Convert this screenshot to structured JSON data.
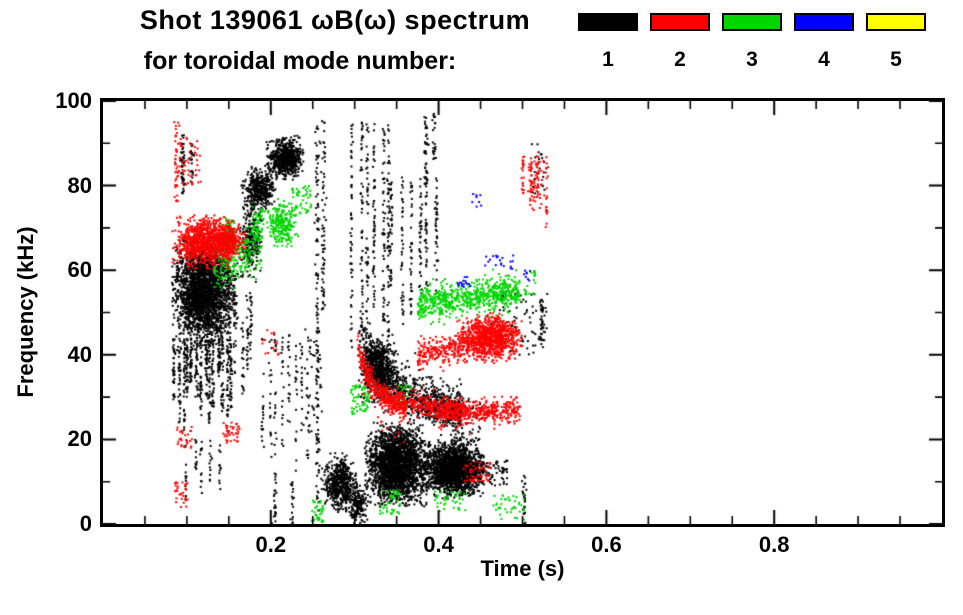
{
  "header": {
    "title_line1": "Shot 139061 ωB(ω) spectrum",
    "title_line2": "for toroidal mode number:"
  },
  "legend": {
    "modes": [
      {
        "label": "1",
        "color": "#000000"
      },
      {
        "label": "2",
        "color": "#ff0000"
      },
      {
        "label": "3",
        "color": "#00d500"
      },
      {
        "label": "4",
        "color": "#0000ff"
      },
      {
        "label": "5",
        "color": "#ffff00"
      }
    ]
  },
  "chart_data": {
    "type": "scatter",
    "title": "Shot 139061 ωB(ω) spectrum for toroidal mode number: 1 2 3 4 5",
    "xlabel": "Time (s)",
    "ylabel": "Frequency (kHz)",
    "legend_entries": [
      "1",
      "2",
      "3",
      "4",
      "5"
    ],
    "legend_position": "top-right",
    "grid": false,
    "xaxis": {
      "lim": [
        0,
        1
      ],
      "major": [
        0.2,
        0.4,
        0.6,
        0.8
      ],
      "labels": [
        "0.2",
        "0.4",
        "0.6",
        "0.8"
      ],
      "minor_step": 0.05
    },
    "yaxis": {
      "lim": [
        0,
        100
      ],
      "major": [
        0,
        20,
        40,
        60,
        80,
        100
      ],
      "labels": [
        "0",
        "20",
        "40",
        "60",
        "80",
        "100"
      ],
      "minor_step": 10
    },
    "mode_colors": {
      "1": "#000000",
      "2": "#ff0000",
      "3": "#00d500",
      "4": "#0000ff",
      "5": "#ffff00"
    },
    "clusters": [
      {
        "m": 1,
        "type": "blob",
        "t": [
          0.085,
          0.158
        ],
        "f": [
          43,
          67
        ],
        "n": 2600
      },
      {
        "m": 1,
        "type": "comb",
        "t": [
          0.086,
          0.152
        ],
        "f": [
          22,
          44
        ],
        "k": 14,
        "fj": 14,
        "n": 38
      },
      {
        "m": 1,
        "type": "comb",
        "t": [
          0.1,
          0.138
        ],
        "f": [
          4,
          20
        ],
        "k": 5,
        "fj": 10,
        "n": 12
      },
      {
        "m": 1,
        "type": "streak",
        "t": [
          0.095
        ],
        "f": [
          78,
          92
        ],
        "n": 46
      },
      {
        "m": 1,
        "type": "streak",
        "t": [
          0.106
        ],
        "f": [
          80,
          90
        ],
        "n": 24
      },
      {
        "m": 1,
        "type": "blob",
        "t": [
          0.163,
          0.19
        ],
        "f": [
          58,
          74
        ],
        "n": 240
      },
      {
        "m": 1,
        "type": "blob",
        "t": [
          0.168,
          0.205
        ],
        "f": [
          74,
          84
        ],
        "n": 420
      },
      {
        "m": 1,
        "type": "blob",
        "t": [
          0.198,
          0.238
        ],
        "f": [
          82,
          91
        ],
        "n": 680
      },
      {
        "m": 1,
        "type": "comb",
        "t": [
          0.152,
          0.178
        ],
        "f": [
          30,
          55
        ],
        "k": 5,
        "fj": 15,
        "n": 22
      },
      {
        "m": 1,
        "type": "comb",
        "t": [
          0.19,
          0.245
        ],
        "f": [
          8,
          45
        ],
        "k": 8,
        "fj": 20,
        "n": 18
      },
      {
        "m": 1,
        "type": "streak",
        "t": [
          0.205
        ],
        "f": [
          0,
          12
        ],
        "n": 22
      },
      {
        "m": 1,
        "type": "streak",
        "t": [
          0.226
        ],
        "f": [
          0,
          10
        ],
        "n": 18
      },
      {
        "m": 1,
        "type": "box",
        "t": [
          0.24,
          0.262
        ],
        "f": [
          20,
          46
        ],
        "n": 36
      },
      {
        "m": 1,
        "type": "streak",
        "t": [
          0.2555
        ],
        "f": [
          2,
          96
        ],
        "n": 130
      },
      {
        "m": 1,
        "type": "streak",
        "t": [
          0.263
        ],
        "f": [
          50,
          96
        ],
        "n": 64
      },
      {
        "m": 1,
        "type": "blob",
        "t": [
          0.263,
          0.302
        ],
        "f": [
          3,
          16
        ],
        "n": 560
      },
      {
        "m": 1,
        "type": "blob",
        "t": [
          0.292,
          0.316
        ],
        "f": [
          0,
          10
        ],
        "n": 190
      },
      {
        "m": 1,
        "type": "chirp",
        "t": [
          0.305,
          0.428
        ],
        "f": [
          26,
          47
        ],
        "n": 850,
        "th": 5
      },
      {
        "m": 1,
        "type": "blob",
        "t": [
          0.307,
          0.347
        ],
        "f": [
          29,
          44
        ],
        "n": 650
      },
      {
        "m": 1,
        "type": "blob",
        "t": [
          0.315,
          0.387
        ],
        "f": [
          5,
          23
        ],
        "n": 2500
      },
      {
        "m": 1,
        "type": "blob",
        "t": [
          0.385,
          0.452
        ],
        "f": [
          7,
          19
        ],
        "n": 1900
      },
      {
        "m": 1,
        "type": "comb",
        "t": [
          0.298,
          0.342
        ],
        "f": [
          35,
          95
        ],
        "k": 6,
        "fj": 25,
        "n": 55
      },
      {
        "m": 1,
        "type": "comb",
        "t": [
          0.345,
          0.398
        ],
        "f": [
          45,
          82
        ],
        "k": 6,
        "fj": 15,
        "n": 38
      },
      {
        "m": 1,
        "type": "streak",
        "t": [
          0.385
        ],
        "f": [
          80,
          97
        ],
        "n": 36
      },
      {
        "m": 1,
        "type": "streak",
        "t": [
          0.395
        ],
        "f": [
          86,
          97
        ],
        "n": 22
      },
      {
        "m": 1,
        "type": "box",
        "t": [
          0.44,
          0.482
        ],
        "f": [
          9,
          15
        ],
        "n": 110
      },
      {
        "m": 1,
        "type": "box",
        "t": [
          0.413,
          0.452
        ],
        "f": [
          19,
          30
        ],
        "n": 70
      },
      {
        "m": 1,
        "type": "box",
        "t": [
          0.46,
          0.53
        ],
        "f": [
          40,
          55
        ],
        "n": 80
      },
      {
        "m": 1,
        "type": "streak",
        "t": [
          0.523
        ],
        "f": [
          42,
          53
        ],
        "n": 36
      },
      {
        "m": 1,
        "type": "streak",
        "t": [
          0.502
        ],
        "f": [
          0,
          12
        ],
        "n": 26
      },
      {
        "m": 1,
        "type": "box",
        "t": [
          0.51,
          0.527
        ],
        "f": [
          78,
          90
        ],
        "n": 24
      },
      {
        "m": 3,
        "type": "band",
        "t": [
          0.132,
          0.19
        ],
        "f": [
          58,
          68
        ],
        "n": 240,
        "drift": 8
      },
      {
        "m": 3,
        "type": "blob",
        "t": [
          0.142,
          0.158
        ],
        "f": [
          65,
          72
        ],
        "n": 150
      },
      {
        "m": 3,
        "type": "blob",
        "t": [
          0.195,
          0.23
        ],
        "f": [
          66,
          76
        ],
        "n": 260
      },
      {
        "m": 3,
        "type": "box",
        "t": [
          0.225,
          0.248
        ],
        "f": [
          73,
          80
        ],
        "n": 55
      },
      {
        "m": 3,
        "type": "box",
        "t": [
          0.178,
          0.192
        ],
        "f": [
          68,
          75
        ],
        "n": 40
      },
      {
        "m": 3,
        "type": "band",
        "t": [
          0.375,
          0.497
        ],
        "f": [
          50,
          57
        ],
        "n": 680,
        "drift": 3
      },
      {
        "m": 3,
        "type": "box",
        "t": [
          0.295,
          0.317
        ],
        "f": [
          26,
          33
        ],
        "n": 60
      },
      {
        "m": 3,
        "type": "box",
        "t": [
          0.248,
          0.263
        ],
        "f": [
          0,
          6
        ],
        "n": 36
      },
      {
        "m": 3,
        "type": "box",
        "t": [
          0.33,
          0.356
        ],
        "f": [
          2,
          8
        ],
        "n": 44
      },
      {
        "m": 3,
        "type": "box",
        "t": [
          0.395,
          0.432
        ],
        "f": [
          3,
          8
        ],
        "n": 40
      },
      {
        "m": 3,
        "type": "box",
        "t": [
          0.465,
          0.502
        ],
        "f": [
          1,
          7
        ],
        "n": 40
      },
      {
        "m": 3,
        "type": "box",
        "t": [
          0.352,
          0.368
        ],
        "f": [
          28,
          33
        ],
        "n": 24
      },
      {
        "m": 3,
        "type": "box",
        "t": [
          0.5,
          0.516
        ],
        "f": [
          54,
          60
        ],
        "n": 20
      },
      {
        "m": 2,
        "type": "blob",
        "t": [
          0.085,
          0.152
        ],
        "f": [
          61,
          72
        ],
        "n": 850
      },
      {
        "m": 2,
        "type": "streak",
        "t": [
          0.0875
        ],
        "f": [
          74,
          95
        ],
        "n": 40
      },
      {
        "m": 2,
        "type": "box",
        "t": [
          0.09,
          0.117
        ],
        "f": [
          80,
          92
        ],
        "n": 46
      },
      {
        "m": 2,
        "type": "blob",
        "t": [
          0.128,
          0.168
        ],
        "f": [
          63,
          71
        ],
        "n": 420
      },
      {
        "m": 2,
        "type": "box",
        "t": [
          0.085,
          0.101
        ],
        "f": [
          4,
          10
        ],
        "n": 30
      },
      {
        "m": 2,
        "type": "box",
        "t": [
          0.088,
          0.106
        ],
        "f": [
          18,
          23
        ],
        "n": 26
      },
      {
        "m": 2,
        "type": "box",
        "t": [
          0.143,
          0.163
        ],
        "f": [
          19,
          24
        ],
        "n": 40
      },
      {
        "m": 2,
        "type": "box",
        "t": [
          0.19,
          0.212
        ],
        "f": [
          40,
          46
        ],
        "n": 14
      },
      {
        "m": 2,
        "type": "chirp",
        "t": [
          0.302,
          0.362
        ],
        "f": [
          27,
          43
        ],
        "n": 460,
        "th": 3
      },
      {
        "m": 2,
        "type": "band",
        "t": [
          0.365,
          0.432
        ],
        "f": [
          25,
          30
        ],
        "n": 240,
        "drift": -2
      },
      {
        "m": 2,
        "type": "band",
        "t": [
          0.4,
          0.497
        ],
        "f": [
          24,
          29
        ],
        "n": 420,
        "drift": 1
      },
      {
        "m": 2,
        "type": "band",
        "t": [
          0.375,
          0.437
        ],
        "f": [
          38,
          44
        ],
        "n": 260,
        "drift": 2
      },
      {
        "m": 2,
        "type": "blob",
        "t": [
          0.425,
          0.497
        ],
        "f": [
          39,
          49
        ],
        "n": 1000
      },
      {
        "m": 2,
        "type": "comb",
        "t": [
          0.5,
          0.53
        ],
        "f": [
          68,
          87
        ],
        "k": 4,
        "fj": 10,
        "n": 22
      },
      {
        "m": 2,
        "type": "box",
        "t": [
          0.505,
          0.527
        ],
        "f": [
          74,
          86
        ],
        "n": 36
      },
      {
        "m": 2,
        "type": "box",
        "t": [
          0.43,
          0.462
        ],
        "f": [
          10,
          15
        ],
        "n": 55
      },
      {
        "m": 4,
        "type": "box",
        "t": [
          0.423,
          0.438
        ],
        "f": [
          56,
          59
        ],
        "n": 16
      },
      {
        "m": 4,
        "type": "box",
        "t": [
          0.455,
          0.492
        ],
        "f": [
          60,
          64
        ],
        "n": 20
      },
      {
        "m": 4,
        "type": "box",
        "t": [
          0.5,
          0.511
        ],
        "f": [
          57,
          60
        ],
        "n": 8
      },
      {
        "m": 4,
        "type": "box",
        "t": [
          0.44,
          0.451
        ],
        "f": [
          75,
          78
        ],
        "n": 8
      }
    ]
  }
}
